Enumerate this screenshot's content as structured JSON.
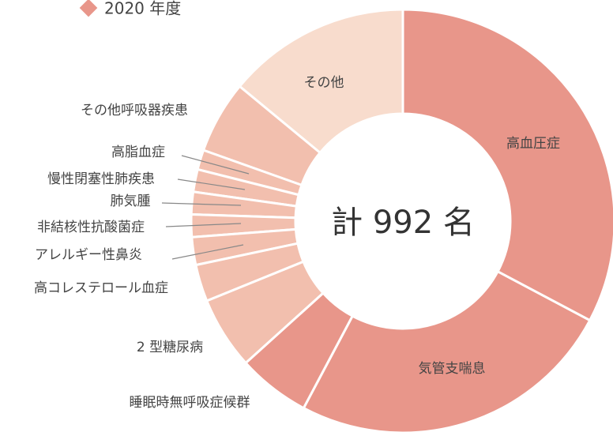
{
  "chart_data": {
    "type": "donut",
    "legend": "2020 年度",
    "legend_color": "#e8968a",
    "center_label": "計 992 名",
    "categories": [
      "高血圧症",
      "気管支喘息",
      "睡眠時無呼吸症候群",
      "2 型糖尿病",
      "高コレステロール血症",
      "アレルギー性鼻炎",
      "非結核性抗酸菌症",
      "肺気腫",
      "慢性閉塞性肺疾患",
      "高脂血症",
      "その他呼吸器疾患",
      "その他"
    ],
    "values": [
      325,
      248,
      55,
      55,
      28,
      21,
      17,
      17,
      17,
      15,
      55,
      139
    ],
    "colors": [
      "#e8968a",
      "#e8968a",
      "#e8968a",
      "#f2bfae",
      "#f2bfae",
      "#f2bfae",
      "#f2bfae",
      "#f2bfae",
      "#f2bfae",
      "#f2bfae",
      "#f2bfae",
      "#f8dccd"
    ]
  }
}
